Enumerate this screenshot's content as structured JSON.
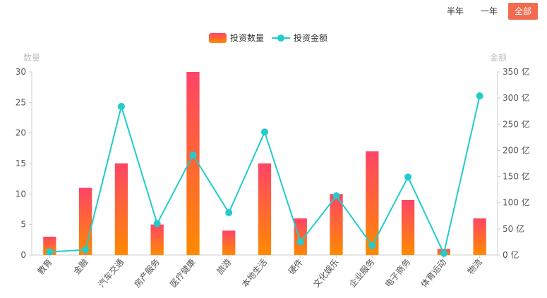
{
  "range_tabs": [
    {
      "label": "半年",
      "active": false
    },
    {
      "label": "一年",
      "active": false
    },
    {
      "label": "全部",
      "active": true
    }
  ],
  "colors": {
    "bar_top": "#ff4466",
    "bar_bottom": "#ff8a00",
    "line": "#22cccc",
    "active_tab": "#f26b4e"
  },
  "chart_data": {
    "type": "bar",
    "legend_position": "top-center",
    "categories": [
      "教育",
      "金融",
      "汽车交通",
      "房产服务",
      "医疗健康",
      "旅游",
      "本地生活",
      "硬件",
      "文化娱乐",
      "企业服务",
      "电子商务",
      "体育运动",
      "物流"
    ],
    "series": [
      {
        "name": "投资数量",
        "type": "bar",
        "axis": "left",
        "values": [
          3,
          11,
          15,
          5,
          30,
          4,
          15,
          6,
          10,
          17,
          9,
          1,
          6
        ]
      },
      {
        "name": "投资金额",
        "type": "line",
        "axis": "right",
        "values": [
          6,
          10,
          284,
          60,
          191,
          81,
          235,
          25,
          113,
          18,
          149,
          3,
          304
        ]
      }
    ],
    "y_left": {
      "name": "数量",
      "min": 0,
      "max": 30,
      "ticks": [
        "0",
        "5",
        "10",
        "15",
        "20",
        "25",
        "30"
      ]
    },
    "y_right": {
      "name": "金额",
      "min": 0,
      "max": 350,
      "ticks": [
        "0 亿",
        "50 亿",
        "100 亿",
        "150 亿",
        "200 亿",
        "250 亿",
        "300 亿",
        "350 亿"
      ]
    },
    "grid": false
  }
}
